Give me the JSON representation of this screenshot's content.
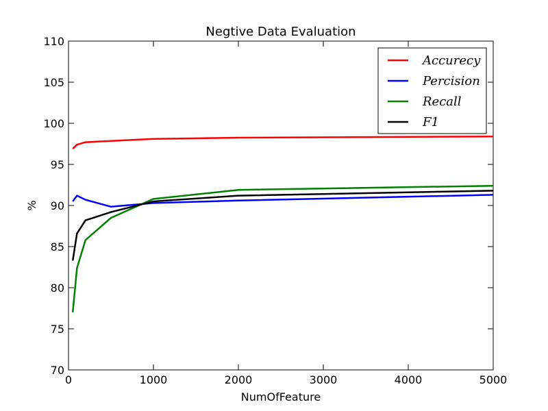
{
  "chart_data": {
    "type": "line",
    "title": "Negtive Data Evaluation",
    "xlabel": "NumOfFeature",
    "ylabel": "%",
    "xlim": [
      0,
      5000
    ],
    "ylim": [
      70,
      110
    ],
    "xticks": [
      0,
      1000,
      2000,
      3000,
      4000,
      5000
    ],
    "yticks": [
      70,
      75,
      80,
      85,
      90,
      95,
      100,
      105,
      110
    ],
    "grid": false,
    "legend_position": "top-right",
    "series": [
      {
        "name": "Accurecy",
        "color": "#ff0000",
        "x": [
          50,
          100,
          200,
          500,
          1000,
          2000,
          5000
        ],
        "y": [
          96.9,
          97.4,
          97.7,
          97.85,
          98.1,
          98.25,
          98.4
        ]
      },
      {
        "name": "Percision",
        "color": "#0000ff",
        "x": [
          50,
          100,
          200,
          500,
          1000,
          2000,
          5000
        ],
        "y": [
          90.5,
          91.2,
          90.7,
          89.85,
          90.3,
          90.6,
          91.3
        ]
      },
      {
        "name": "Recall",
        "color": "#008000",
        "x": [
          50,
          100,
          200,
          500,
          1000,
          2000,
          5000
        ],
        "y": [
          77.0,
          82.4,
          85.8,
          88.5,
          90.8,
          91.9,
          92.4
        ]
      },
      {
        "name": "F1",
        "color": "#000000",
        "x": [
          50,
          100,
          200,
          500,
          1000,
          2000,
          5000
        ],
        "y": [
          83.3,
          86.6,
          88.2,
          89.2,
          90.5,
          91.2,
          91.8
        ]
      }
    ]
  }
}
